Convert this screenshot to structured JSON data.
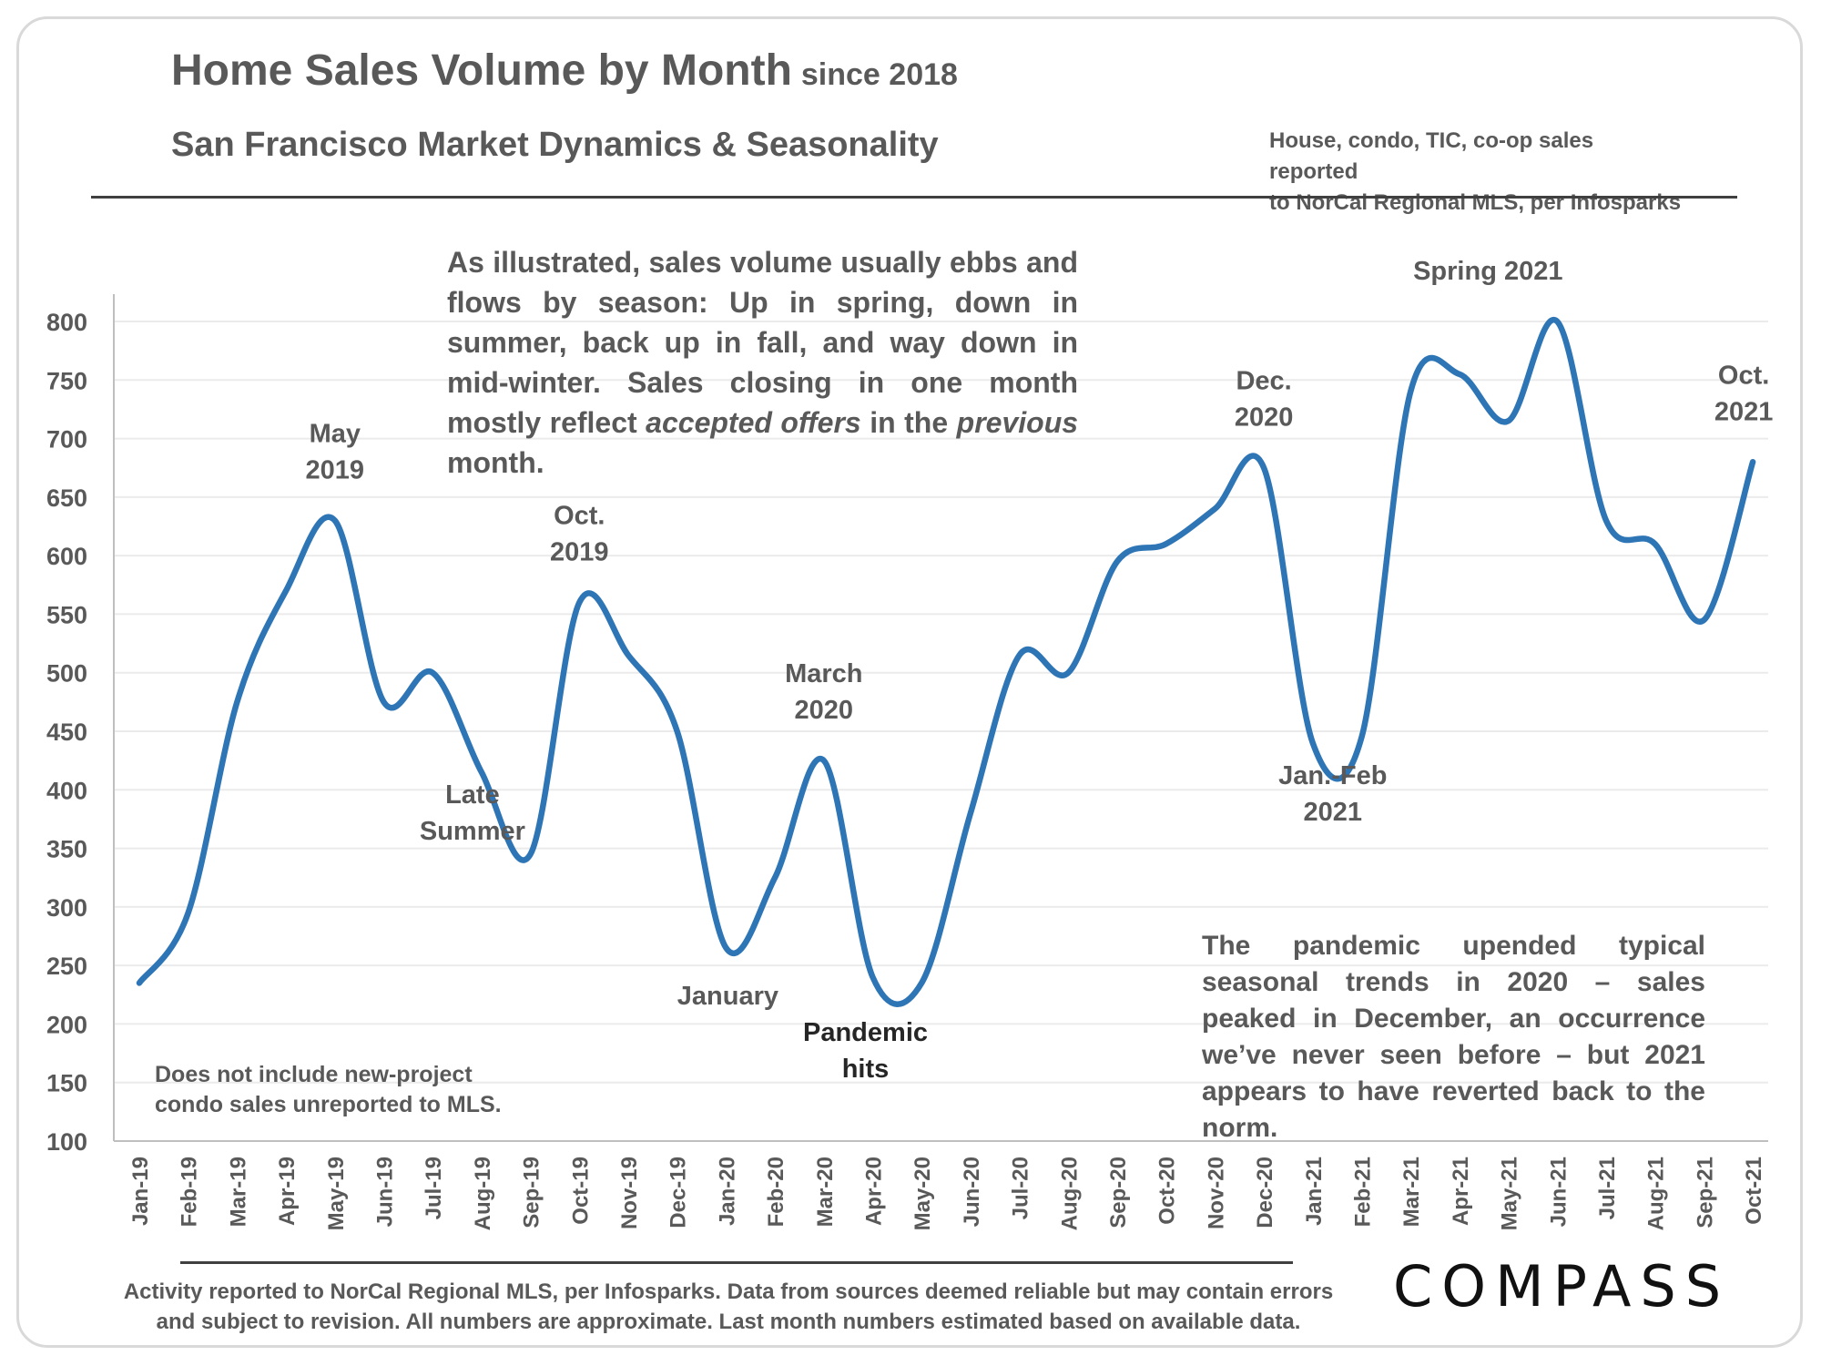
{
  "header": {
    "title": "Home Sales Volume by Month",
    "title_suffix": "since 2018",
    "subtitle": "San Francisco Market Dynamics & Seasonality",
    "source_line1": "House, condo, TIC, co-op sales reported",
    "source_line2": "to NorCal Regional MLS, per Infosparks"
  },
  "notes": {
    "intro_before": "As illustrated, sales volume usually ebbs and flows by season: Up in spring, down in summer, back up in fall, and way down in mid-winter. Sales closing in one month mostly reflect ",
    "intro_em1": "accepted offers",
    "intro_mid": " in the ",
    "intro_em2": "previous",
    "intro_after": " month.",
    "pandemic": "The pandemic upended typical seasonal trends in 2020 – sales peaked in December, an occurrence we’ve never seen before – but 2021 appears to have reverted back to the norm.",
    "new_project_line1": "Does not include new-project",
    "new_project_line2": "condo sales unreported to MLS."
  },
  "footer": {
    "line1": "Activity reported to NorCal Regional MLS, per Infosparks. Data from sources deemed reliable but may contain errors",
    "line2": "and subject to revision. All numbers are approximate. Last month numbers estimated based on available data."
  },
  "logo": "COMPASS",
  "colors": {
    "line": "#2e75b6",
    "grid": "#ebebeb",
    "text": "#595959",
    "axis": "#bfbfbf"
  },
  "chart_data": {
    "type": "line",
    "title": "Home Sales Volume by Month",
    "categories": [
      "Jan-19",
      "Feb-19",
      "Mar-19",
      "Apr-19",
      "May-19",
      "Jun-19",
      "Jul-19",
      "Aug-19",
      "Sep-19",
      "Oct-19",
      "Nov-19",
      "Dec-19",
      "Jan-20",
      "Feb-20",
      "Mar-20",
      "Apr-20",
      "May-20",
      "Jun-20",
      "Jul-20",
      "Aug-20",
      "Sep-20",
      "Oct-20",
      "Nov-20",
      "Dec-20",
      "Jan-21",
      "Feb-21",
      "Mar-21",
      "Apr-21",
      "May-21",
      "Jun-21",
      "Jul-21",
      "Aug-21",
      "Sep-21",
      "Oct-21"
    ],
    "series": [
      {
        "values": [
          235,
          295,
          475,
          570,
          630,
          475,
          500,
          415,
          345,
          560,
          515,
          450,
          265,
          325,
          425,
          240,
          235,
          380,
          515,
          500,
          595,
          610,
          640,
          675,
          440,
          445,
          740,
          755,
          715,
          800,
          630,
          610,
          545,
          680
        ]
      }
    ],
    "ylim": [
      100,
      800
    ],
    "yticks": [
      100,
      150,
      200,
      250,
      300,
      350,
      400,
      450,
      500,
      550,
      600,
      650,
      700,
      750,
      800
    ],
    "grid": true,
    "legend": "none",
    "annotations": [
      {
        "index": 4,
        "lines": [
          "May",
          "2019"
        ],
        "pos": "above",
        "style": "normal"
      },
      {
        "index": 7,
        "lines": [
          "Late",
          "Summer"
        ],
        "pos": "below",
        "style": "normal"
      },
      {
        "index": 9,
        "lines": [
          "Oct.",
          "2019"
        ],
        "pos": "above",
        "style": "normal"
      },
      {
        "index": 12,
        "lines": [
          "January"
        ],
        "pos": "below",
        "style": "normal"
      },
      {
        "index": 14,
        "lines": [
          "March",
          "2020"
        ],
        "pos": "above",
        "style": "normal"
      },
      {
        "index": 15,
        "lines": [
          "Pandemic",
          "hits"
        ],
        "pos": "below",
        "style": "strong"
      },
      {
        "index": 23,
        "lines": [
          "Dec.",
          "2020"
        ],
        "pos": "above",
        "style": "normal"
      },
      {
        "index": 24,
        "lines": [
          "Jan.-Feb",
          "2021"
        ],
        "pos": "below",
        "style": "normal"
      },
      {
        "index": 29,
        "lines": [
          "Spring 2021"
        ],
        "pos": "above",
        "style": "normal"
      },
      {
        "index": 33,
        "lines": [
          "Oct.",
          "2021"
        ],
        "pos": "above",
        "style": "normal"
      }
    ]
  }
}
